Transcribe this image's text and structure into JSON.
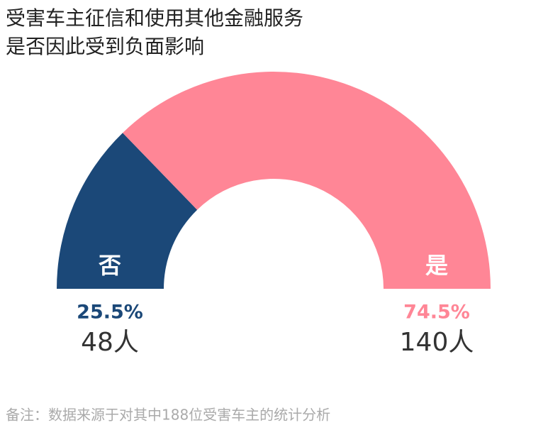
{
  "chart_data": {
    "type": "half-donut",
    "title": [
      "受害车主征信和使用其他金融服务",
      "是否因此受到负面影响"
    ],
    "categories": [
      "否",
      "是"
    ],
    "values": [
      25.5,
      74.5
    ],
    "value_labels": [
      "25.5%",
      "74.5%"
    ],
    "count_labels": [
      "48人",
      "140人"
    ],
    "colors": [
      "#1b4878",
      "#ff8696"
    ],
    "note": "备注：数据来源于对其中188位受害车主的统计分析"
  }
}
